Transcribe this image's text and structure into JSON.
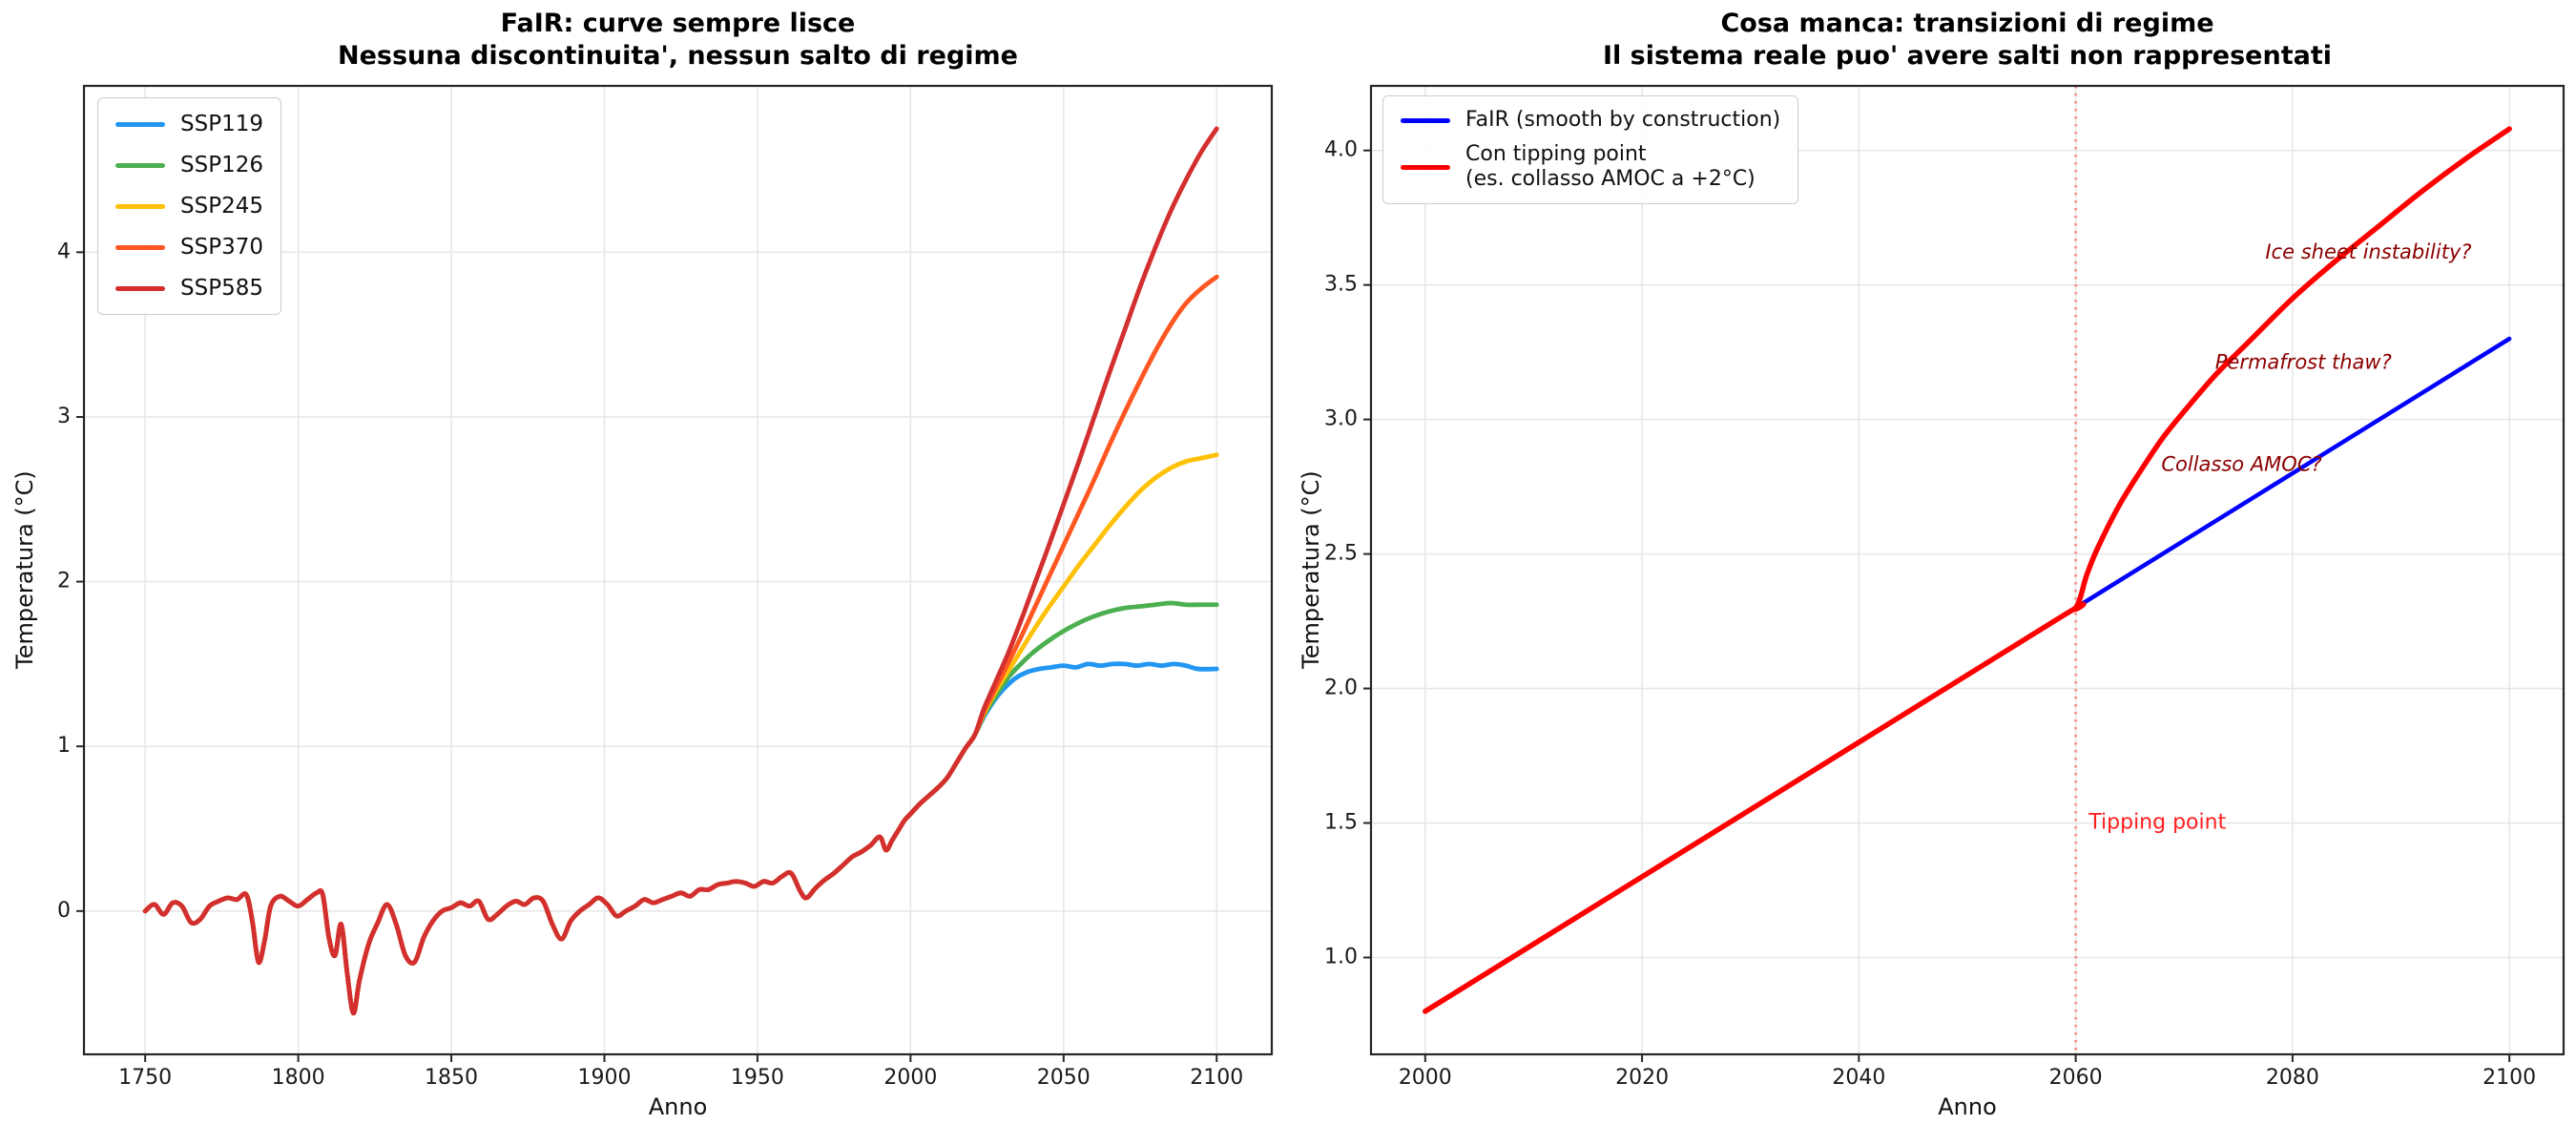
{
  "figure": {
    "background": "#ffffff",
    "grid_color": "#e7e7e7",
    "spine_color": "#262626",
    "tick_label_color": "#1a1a1a"
  },
  "chart_data": [
    {
      "id": "left",
      "type": "line",
      "title_line1": "FaIR: curve sempre lisce",
      "title_line2": "Nessuna discontinuita', nessun salto di regime",
      "xlabel": "Anno",
      "ylabel": "Temperatura (°C)",
      "xlim": [
        1730,
        2118
      ],
      "ylim": [
        -0.87,
        5.01
      ],
      "grid": true,
      "legend_position": "upper-left",
      "xticks": [
        {
          "v": 1750,
          "label": "1750"
        },
        {
          "v": 1800,
          "label": "1800"
        },
        {
          "v": 1850,
          "label": "1850"
        },
        {
          "v": 1900,
          "label": "1900"
        },
        {
          "v": 1950,
          "label": "1950"
        },
        {
          "v": 2000,
          "label": "2000"
        },
        {
          "v": 2050,
          "label": "2050"
        },
        {
          "v": 2100,
          "label": "2100"
        }
      ],
      "yticks": [
        {
          "v": 0,
          "label": "0"
        },
        {
          "v": 1,
          "label": "1"
        },
        {
          "v": 2,
          "label": "2"
        },
        {
          "v": 3,
          "label": "3"
        },
        {
          "v": 4,
          "label": "4"
        }
      ],
      "shared_history": [
        [
          1750,
          0.0
        ],
        [
          1753,
          0.04
        ],
        [
          1756,
          -0.02
        ],
        [
          1759,
          0.05
        ],
        [
          1762,
          0.03
        ],
        [
          1765,
          -0.07
        ],
        [
          1768,
          -0.05
        ],
        [
          1771,
          0.03
        ],
        [
          1774,
          0.06
        ],
        [
          1777,
          0.08
        ],
        [
          1780,
          0.07
        ],
        [
          1783,
          0.1
        ],
        [
          1785,
          -0.06
        ],
        [
          1787,
          -0.31
        ],
        [
          1789,
          -0.18
        ],
        [
          1791,
          0.03
        ],
        [
          1794,
          0.09
        ],
        [
          1797,
          0.06
        ],
        [
          1800,
          0.03
        ],
        [
          1803,
          0.07
        ],
        [
          1806,
          0.11
        ],
        [
          1808,
          0.1
        ],
        [
          1810,
          -0.16
        ],
        [
          1812,
          -0.27
        ],
        [
          1814,
          -0.08
        ],
        [
          1816,
          -0.38
        ],
        [
          1818,
          -0.62
        ],
        [
          1820,
          -0.42
        ],
        [
          1823,
          -0.2
        ],
        [
          1826,
          -0.07
        ],
        [
          1829,
          0.04
        ],
        [
          1832,
          -0.08
        ],
        [
          1835,
          -0.27
        ],
        [
          1838,
          -0.31
        ],
        [
          1841,
          -0.16
        ],
        [
          1844,
          -0.06
        ],
        [
          1847,
          0.0
        ],
        [
          1850,
          0.02
        ],
        [
          1853,
          0.05
        ],
        [
          1856,
          0.03
        ],
        [
          1859,
          0.06
        ],
        [
          1862,
          -0.05
        ],
        [
          1865,
          -0.02
        ],
        [
          1868,
          0.03
        ],
        [
          1871,
          0.06
        ],
        [
          1874,
          0.04
        ],
        [
          1877,
          0.08
        ],
        [
          1880,
          0.06
        ],
        [
          1883,
          -0.08
        ],
        [
          1886,
          -0.17
        ],
        [
          1889,
          -0.06
        ],
        [
          1892,
          0.0
        ],
        [
          1895,
          0.04
        ],
        [
          1898,
          0.08
        ],
        [
          1901,
          0.04
        ],
        [
          1904,
          -0.03
        ],
        [
          1907,
          0.0
        ],
        [
          1910,
          0.03
        ],
        [
          1913,
          0.07
        ],
        [
          1916,
          0.05
        ],
        [
          1919,
          0.07
        ],
        [
          1922,
          0.09
        ],
        [
          1925,
          0.11
        ],
        [
          1928,
          0.09
        ],
        [
          1931,
          0.13
        ],
        [
          1934,
          0.13
        ],
        [
          1937,
          0.16
        ],
        [
          1940,
          0.17
        ],
        [
          1943,
          0.18
        ],
        [
          1946,
          0.17
        ],
        [
          1949,
          0.15
        ],
        [
          1952,
          0.18
        ],
        [
          1955,
          0.17
        ],
        [
          1958,
          0.21
        ],
        [
          1961,
          0.23
        ],
        [
          1964,
          0.12
        ],
        [
          1966,
          0.08
        ],
        [
          1969,
          0.14
        ],
        [
          1972,
          0.19
        ],
        [
          1975,
          0.23
        ],
        [
          1978,
          0.28
        ],
        [
          1981,
          0.33
        ],
        [
          1984,
          0.36
        ],
        [
          1987,
          0.4
        ],
        [
          1990,
          0.45
        ],
        [
          1992,
          0.37
        ],
        [
          1994,
          0.43
        ],
        [
          1996,
          0.49
        ],
        [
          1998,
          0.55
        ],
        [
          2000,
          0.59
        ],
        [
          2003,
          0.65
        ],
        [
          2006,
          0.7
        ],
        [
          2009,
          0.75
        ],
        [
          2012,
          0.81
        ],
        [
          2015,
          0.9
        ],
        [
          2018,
          0.99
        ],
        [
          2021,
          1.07
        ]
      ],
      "series": [
        {
          "name": "SSP119",
          "color": "#2196F3",
          "width": 4.8,
          "continues_history": true,
          "values": [
            [
              2024,
              1.18
            ],
            [
              2027,
              1.27
            ],
            [
              2030,
              1.34
            ],
            [
              2034,
              1.41
            ],
            [
              2038,
              1.45
            ],
            [
              2042,
              1.47
            ],
            [
              2046,
              1.48
            ],
            [
              2050,
              1.49
            ],
            [
              2054,
              1.48
            ],
            [
              2058,
              1.5
            ],
            [
              2062,
              1.49
            ],
            [
              2066,
              1.5
            ],
            [
              2070,
              1.5
            ],
            [
              2074,
              1.49
            ],
            [
              2078,
              1.5
            ],
            [
              2082,
              1.49
            ],
            [
              2086,
              1.5
            ],
            [
              2090,
              1.49
            ],
            [
              2094,
              1.47
            ],
            [
              2100,
              1.47
            ]
          ]
        },
        {
          "name": "SSP126",
          "color": "#4CAF50",
          "width": 4.8,
          "continues_history": true,
          "values": [
            [
              2024,
              1.19
            ],
            [
              2028,
              1.31
            ],
            [
              2032,
              1.42
            ],
            [
              2036,
              1.5
            ],
            [
              2040,
              1.57
            ],
            [
              2045,
              1.64
            ],
            [
              2050,
              1.7
            ],
            [
              2055,
              1.75
            ],
            [
              2060,
              1.79
            ],
            [
              2065,
              1.82
            ],
            [
              2070,
              1.84
            ],
            [
              2075,
              1.85
            ],
            [
              2080,
              1.86
            ],
            [
              2085,
              1.87
            ],
            [
              2090,
              1.86
            ],
            [
              2095,
              1.86
            ],
            [
              2100,
              1.86
            ]
          ]
        },
        {
          "name": "SSP245",
          "color": "#FFC107",
          "width": 4.8,
          "continues_history": true,
          "values": [
            [
              2024,
              1.2
            ],
            [
              2028,
              1.34
            ],
            [
              2032,
              1.46
            ],
            [
              2036,
              1.58
            ],
            [
              2040,
              1.7
            ],
            [
              2045,
              1.84
            ],
            [
              2050,
              1.97
            ],
            [
              2055,
              2.1
            ],
            [
              2060,
              2.22
            ],
            [
              2065,
              2.34
            ],
            [
              2070,
              2.45
            ],
            [
              2075,
              2.55
            ],
            [
              2080,
              2.63
            ],
            [
              2085,
              2.69
            ],
            [
              2090,
              2.73
            ],
            [
              2095,
              2.75
            ],
            [
              2100,
              2.77
            ]
          ]
        },
        {
          "name": "SSP370",
          "color": "#FF5722",
          "width": 4.8,
          "continues_history": true,
          "values": [
            [
              2024,
              1.21
            ],
            [
              2028,
              1.36
            ],
            [
              2032,
              1.51
            ],
            [
              2036,
              1.66
            ],
            [
              2040,
              1.82
            ],
            [
              2045,
              2.02
            ],
            [
              2050,
              2.22
            ],
            [
              2055,
              2.42
            ],
            [
              2060,
              2.62
            ],
            [
              2065,
              2.83
            ],
            [
              2070,
              3.03
            ],
            [
              2075,
              3.22
            ],
            [
              2080,
              3.4
            ],
            [
              2085,
              3.56
            ],
            [
              2090,
              3.69
            ],
            [
              2095,
              3.78
            ],
            [
              2100,
              3.85
            ]
          ]
        },
        {
          "name": "SSP585",
          "color": "#D32F2F",
          "width": 4.8,
          "continues_history": true,
          "values": [
            [
              2024,
              1.23
            ],
            [
              2028,
              1.4
            ],
            [
              2032,
              1.57
            ],
            [
              2036,
              1.76
            ],
            [
              2040,
              1.96
            ],
            [
              2045,
              2.21
            ],
            [
              2050,
              2.47
            ],
            [
              2055,
              2.73
            ],
            [
              2060,
              3.0
            ],
            [
              2065,
              3.27
            ],
            [
              2070,
              3.53
            ],
            [
              2075,
              3.79
            ],
            [
              2080,
              4.03
            ],
            [
              2085,
              4.25
            ],
            [
              2090,
              4.44
            ],
            [
              2095,
              4.61
            ],
            [
              2100,
              4.75
            ]
          ]
        }
      ]
    },
    {
      "id": "right",
      "type": "line",
      "title_line1": "Cosa manca: transizioni di regime",
      "title_line2": "Il sistema reale puo' avere salti non rappresentati",
      "xlabel": "Anno",
      "ylabel": "Temperatura (°C)",
      "xlim": [
        1995,
        2105
      ],
      "ylim": [
        0.64,
        4.24
      ],
      "grid": true,
      "legend_position": "upper-left",
      "xticks": [
        {
          "v": 2000,
          "label": "2000"
        },
        {
          "v": 2020,
          "label": "2020"
        },
        {
          "v": 2040,
          "label": "2040"
        },
        {
          "v": 2060,
          "label": "2060"
        },
        {
          "v": 2080,
          "label": "2080"
        },
        {
          "v": 2100,
          "label": "2100"
        }
      ],
      "yticks": [
        {
          "v": 1.0,
          "label": "1.0"
        },
        {
          "v": 1.5,
          "label": "1.5"
        },
        {
          "v": 2.0,
          "label": "2.0"
        },
        {
          "v": 2.5,
          "label": "2.5"
        },
        {
          "v": 3.0,
          "label": "3.0"
        },
        {
          "v": 3.5,
          "label": "3.5"
        },
        {
          "v": 4.0,
          "label": "4.0"
        }
      ],
      "series": [
        {
          "name": "FaIR (smooth by construction)",
          "color": "#0000FF",
          "width": 4.5,
          "values": [
            [
              2000,
              0.8
            ],
            [
              2030,
              1.55
            ],
            [
              2060,
              2.3
            ],
            [
              2100,
              3.3
            ]
          ]
        },
        {
          "name": "Con tipping point\n(es. collasso AMOC a +2°C)",
          "color": "#FF0000",
          "width": 5.5,
          "values": [
            [
              2000,
              0.8
            ],
            [
              2030,
              1.55
            ],
            [
              2058,
              2.25
            ],
            [
              2060,
              2.3
            ],
            [
              2061,
              2.42
            ],
            [
              2062,
              2.52
            ],
            [
              2064,
              2.68
            ],
            [
              2066,
              2.81
            ],
            [
              2068,
              2.93
            ],
            [
              2070,
              3.03
            ],
            [
              2073,
              3.17
            ],
            [
              2076,
              3.29
            ],
            [
              2080,
              3.45
            ],
            [
              2084,
              3.59
            ],
            [
              2088,
              3.72
            ],
            [
              2092,
              3.85
            ],
            [
              2096,
              3.97
            ],
            [
              2100,
              4.08
            ]
          ]
        }
      ],
      "vline": {
        "x": 2060,
        "color": "#ff4d4d",
        "opacity": 0.55,
        "dash": "2.5 5.5",
        "width": 3
      },
      "annotations": [
        {
          "text": "Ice sheet instability?",
          "x": 2087,
          "y": 3.62,
          "color": "#8B0000",
          "italic": true,
          "anchor": "middle",
          "size": 21
        },
        {
          "text": "Permafrost thaw?",
          "x": 2081,
          "y": 3.21,
          "color": "#8B0000",
          "italic": true,
          "anchor": "middle",
          "size": 21
        },
        {
          "text": "Collasso AMOC?",
          "x": 2075.3,
          "y": 2.83,
          "color": "#8B0000",
          "italic": true,
          "anchor": "middle",
          "size": 21
        },
        {
          "text": "Tipping point",
          "x": 2061.2,
          "y": 1.5,
          "color": "#ff1f1f",
          "italic": false,
          "anchor": "start",
          "size": 22
        }
      ]
    }
  ]
}
